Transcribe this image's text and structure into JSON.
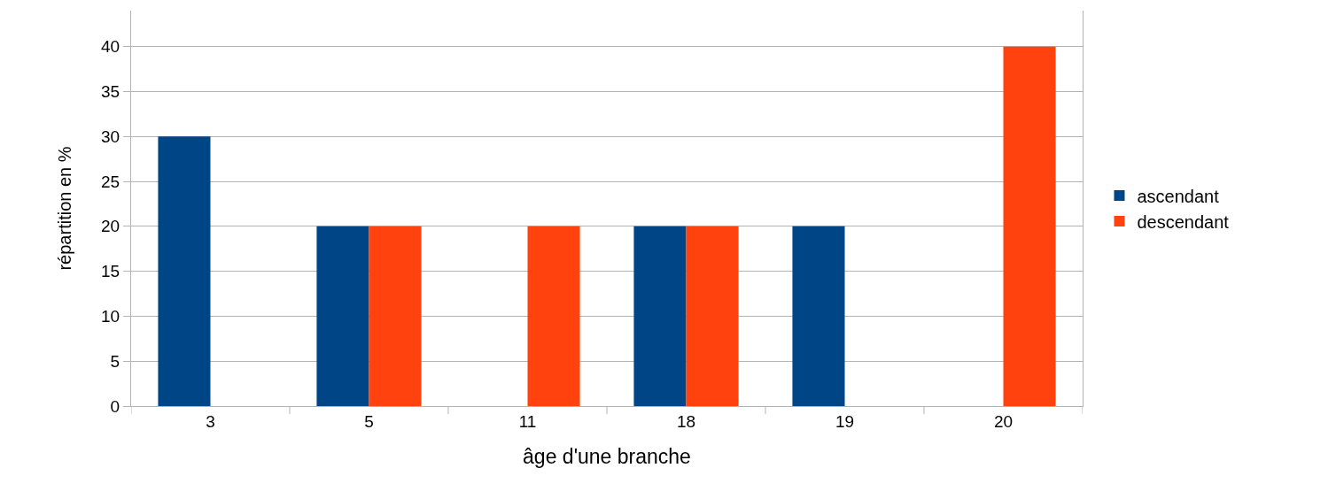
{
  "chart_data": {
    "type": "bar",
    "xlabel": "âge d'une branche",
    "ylabel": "répartition en %",
    "categories": [
      "3",
      "5",
      "11",
      "18",
      "19",
      "20"
    ],
    "series": [
      {
        "name": "ascendant",
        "color": "#004586",
        "values": [
          30,
          20,
          0,
          20,
          20,
          0
        ]
      },
      {
        "name": "descendant",
        "color": "#ff420e",
        "values": [
          0,
          20,
          20,
          20,
          0,
          40
        ]
      }
    ],
    "ylim": [
      0,
      44
    ],
    "yticks": [
      0,
      5,
      10,
      15,
      20,
      25,
      30,
      35,
      40
    ],
    "grid": "y",
    "legend": "right"
  }
}
